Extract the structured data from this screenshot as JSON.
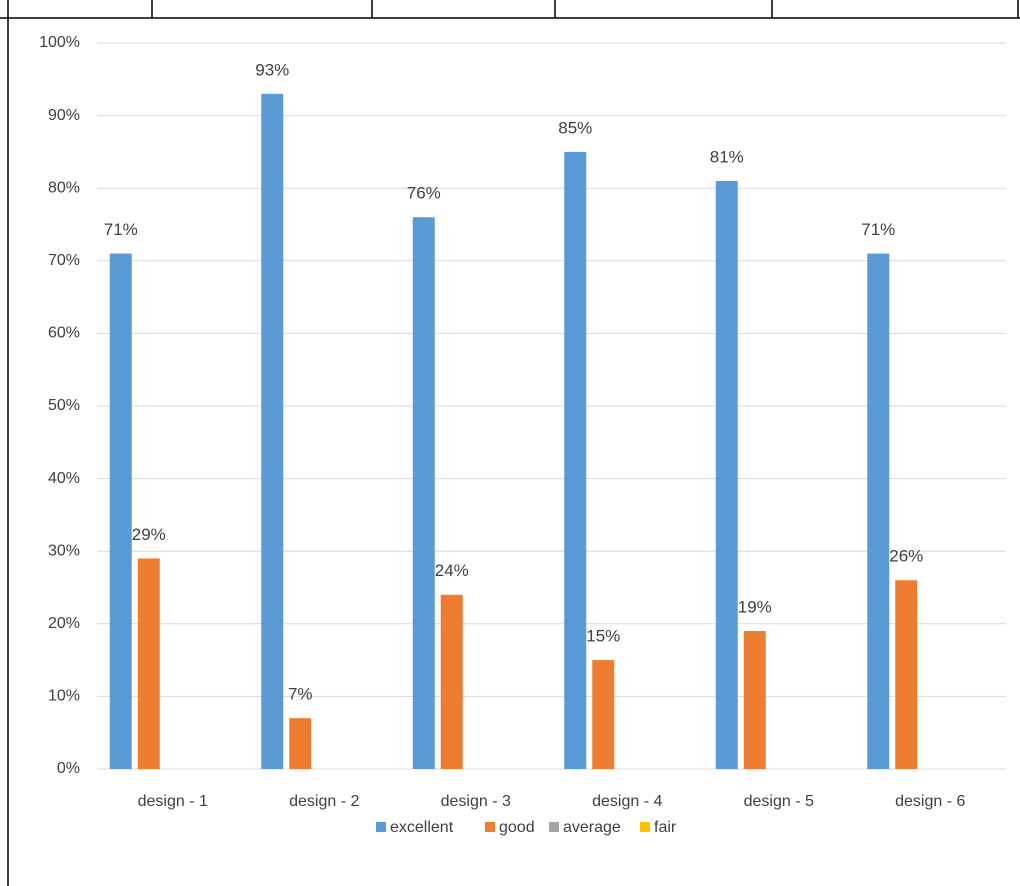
{
  "chart_data": {
    "type": "bar",
    "categories": [
      "design - 1",
      "design - 2",
      "design - 3",
      "design - 4",
      "design - 5",
      "design - 6"
    ],
    "series": [
      {
        "name": "excellent",
        "color": "#5b9bd5",
        "values": [
          71,
          93,
          76,
          85,
          81,
          71
        ],
        "value_labels": [
          "71%",
          "93%",
          "76%",
          "85%",
          "81%",
          "71%"
        ]
      },
      {
        "name": "good",
        "color": "#ed7d31",
        "values": [
          29,
          7,
          24,
          15,
          19,
          26
        ],
        "value_labels": [
          "29%",
          "7%",
          "24%",
          "15%",
          "19%",
          "26%"
        ]
      },
      {
        "name": "average",
        "color": "#a5a5a5",
        "values": [
          0,
          0,
          0,
          0,
          0,
          0
        ]
      },
      {
        "name": "fair",
        "color": "#ffc000",
        "values": [
          0,
          0,
          0,
          0,
          0,
          0
        ]
      }
    ],
    "ylim": [
      0,
      100
    ],
    "yticks": [
      {
        "value": 0,
        "label": "0%"
      },
      {
        "value": 10,
        "label": "10%"
      },
      {
        "value": 20,
        "label": "20%"
      },
      {
        "value": 30,
        "label": "30%"
      },
      {
        "value": 40,
        "label": "40%"
      },
      {
        "value": 50,
        "label": "50%"
      },
      {
        "value": 60,
        "label": "60%"
      },
      {
        "value": 70,
        "label": "70%"
      },
      {
        "value": 80,
        "label": "80%"
      },
      {
        "value": 90,
        "label": "90%"
      },
      {
        "value": 100,
        "label": "100%"
      }
    ],
    "grid": true,
    "legend": "bottom"
  }
}
